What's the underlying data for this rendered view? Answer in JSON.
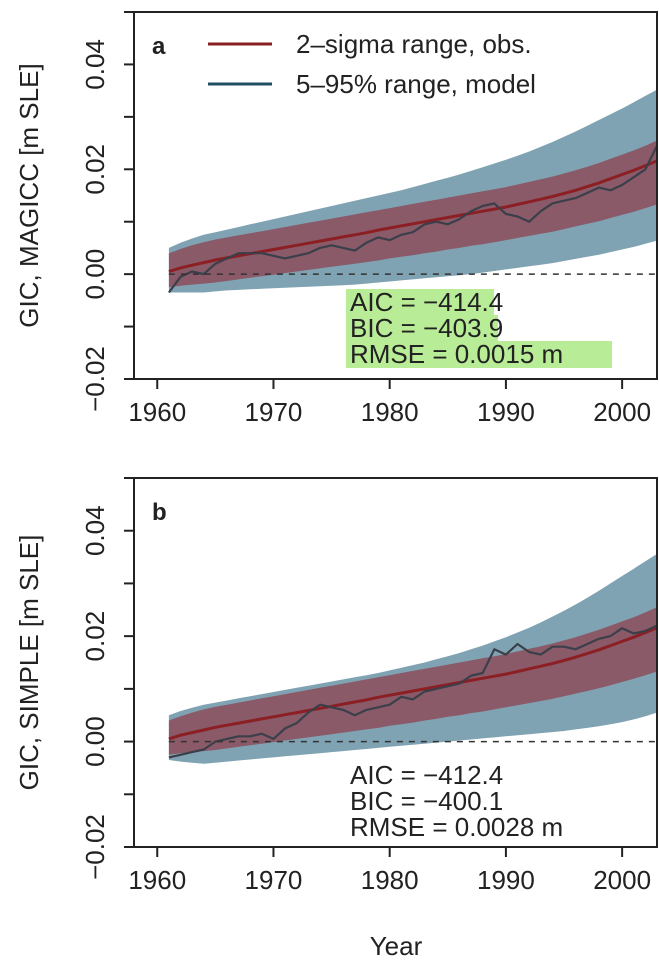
{
  "legend": {
    "obs_label": "2–sigma range, obs.",
    "model_label": "5–95% range, model"
  },
  "colors": {
    "obs_line": "#8b1f24",
    "obs_band": "#8c4d5a",
    "model_line": "#1f4f63",
    "model_band": "#7fa3b3",
    "highlight": "#b8ec96",
    "model_run": "#3a3f4a"
  },
  "shared_xlabel": "Year",
  "chart_data": [
    {
      "type": "line",
      "panel": "a",
      "ylabel": "GIC, MAGICC [m SLE]",
      "xlim": [
        1958,
        2003
      ],
      "ylim": [
        -0.02,
        0.05
      ],
      "xticks": [
        1960,
        1970,
        1980,
        1990,
        2000
      ],
      "xtick_labels": [
        "1960",
        "1970",
        "1980",
        "1990",
        "2000"
      ],
      "yticks": [
        -0.02,
        0.0,
        0.02,
        0.04
      ],
      "ytick_labels": [
        "−0.02",
        "0.00",
        "0.02",
        "0.04"
      ],
      "zero_line": "dashed",
      "stats": [
        "AIC = −414.4",
        "BIC = −403.9",
        "RMSE = 0.0015 m"
      ],
      "stats_highlighted": true,
      "x": [
        1961,
        1962,
        1963,
        1964,
        1965,
        1966,
        1967,
        1968,
        1969,
        1970,
        1971,
        1972,
        1973,
        1974,
        1975,
        1976,
        1977,
        1978,
        1979,
        1980,
        1981,
        1982,
        1983,
        1984,
        1985,
        1986,
        1987,
        1988,
        1989,
        1990,
        1991,
        1992,
        1993,
        1994,
        1995,
        1996,
        1997,
        1998,
        1999,
        2000,
        2001,
        2002,
        2003
      ],
      "series": [
        {
          "name": "2–sigma range, obs.",
          "center": [
            0.0005,
            0.0012,
            0.0017,
            0.0022,
            0.0027,
            0.0031,
            0.0035,
            0.0039,
            0.0043,
            0.0047,
            0.0051,
            0.0055,
            0.0059,
            0.0063,
            0.0067,
            0.0071,
            0.0075,
            0.0079,
            0.0084,
            0.0088,
            0.0092,
            0.0096,
            0.01,
            0.0104,
            0.0108,
            0.0112,
            0.0116,
            0.012,
            0.0124,
            0.0128,
            0.0133,
            0.0138,
            0.0143,
            0.0148,
            0.0154,
            0.016,
            0.0167,
            0.0174,
            0.0182,
            0.019,
            0.0198,
            0.0207,
            0.0216
          ],
          "lower": [
            -0.0025,
            -0.0022,
            -0.002,
            -0.0018,
            -0.0016,
            -0.0013,
            -0.001,
            -0.0007,
            -0.0004,
            -0.0001,
            0.0002,
            0.0005,
            0.0008,
            0.0011,
            0.0014,
            0.0017,
            0.002,
            0.0023,
            0.0026,
            0.003,
            0.0033,
            0.0036,
            0.004,
            0.0043,
            0.0047,
            0.005,
            0.0054,
            0.0057,
            0.0061,
            0.0065,
            0.0069,
            0.0073,
            0.0077,
            0.0081,
            0.0086,
            0.0091,
            0.0096,
            0.0101,
            0.0107,
            0.0113,
            0.0119,
            0.0126,
            0.0133
          ],
          "upper": [
            0.004,
            0.0048,
            0.0055,
            0.0061,
            0.0066,
            0.007,
            0.0074,
            0.0078,
            0.0082,
            0.0086,
            0.009,
            0.0094,
            0.0098,
            0.0102,
            0.0106,
            0.011,
            0.0114,
            0.0118,
            0.0122,
            0.0126,
            0.013,
            0.0134,
            0.0138,
            0.0142,
            0.0146,
            0.015,
            0.0154,
            0.0158,
            0.0162,
            0.0166,
            0.0171,
            0.0176,
            0.0181,
            0.0186,
            0.0192,
            0.0198,
            0.0205,
            0.0212,
            0.022,
            0.0228,
            0.0236,
            0.0245,
            0.0255
          ]
        },
        {
          "name": "5–95% range, model",
          "lower": [
            -0.0035,
            -0.0035,
            -0.0035,
            -0.0035,
            -0.0033,
            -0.0031,
            -0.003,
            -0.0029,
            -0.0028,
            -0.0027,
            -0.0026,
            -0.0025,
            -0.0024,
            -0.0023,
            -0.0022,
            -0.0021,
            -0.002,
            -0.0018,
            -0.0016,
            -0.0014,
            -0.0012,
            -0.001,
            -0.0008,
            -0.0006,
            -0.0004,
            -0.0002,
            0.0,
            0.0003,
            0.0006,
            0.0009,
            0.0012,
            0.0015,
            0.0018,
            0.0021,
            0.0025,
            0.0029,
            0.0033,
            0.0037,
            0.0042,
            0.0047,
            0.0052,
            0.0058,
            0.0064
          ],
          "upper": [
            0.005,
            0.006,
            0.0068,
            0.0075,
            0.008,
            0.0085,
            0.009,
            0.0095,
            0.01,
            0.0105,
            0.011,
            0.0115,
            0.012,
            0.0125,
            0.013,
            0.0135,
            0.014,
            0.0145,
            0.015,
            0.0155,
            0.016,
            0.0166,
            0.0172,
            0.0178,
            0.0184,
            0.019,
            0.0197,
            0.0204,
            0.0211,
            0.0218,
            0.0226,
            0.0234,
            0.0243,
            0.0252,
            0.0262,
            0.0272,
            0.0283,
            0.0294,
            0.0305,
            0.0316,
            0.0328,
            0.034,
            0.0352
          ],
          "run": [
            -0.0035,
            -0.0005,
            0.0005,
            0.0,
            0.002,
            0.003,
            0.004,
            0.004,
            0.004,
            0.0035,
            0.003,
            0.0035,
            0.004,
            0.005,
            0.0055,
            0.005,
            0.0045,
            0.006,
            0.007,
            0.0065,
            0.0075,
            0.008,
            0.0095,
            0.01,
            0.0095,
            0.0105,
            0.012,
            0.013,
            0.0135,
            0.0115,
            0.011,
            0.01,
            0.012,
            0.0135,
            0.014,
            0.0145,
            0.0155,
            0.0165,
            0.016,
            0.017,
            0.0185,
            0.02,
            0.0245
          ]
        }
      ]
    },
    {
      "type": "line",
      "panel": "b",
      "ylabel": "GIC, SIMPLE [m SLE]",
      "xlabel": "Year",
      "xlim": [
        1958,
        2003
      ],
      "ylim": [
        -0.02,
        0.05
      ],
      "xticks": [
        1960,
        1970,
        1980,
        1990,
        2000
      ],
      "xtick_labels": [
        "1960",
        "1970",
        "1980",
        "1990",
        "2000"
      ],
      "yticks": [
        -0.02,
        0.0,
        0.02,
        0.04
      ],
      "ytick_labels": [
        "−0.02",
        "0.00",
        "0.02",
        "0.04"
      ],
      "zero_line": "dashed",
      "stats": [
        "AIC = −412.4",
        "BIC = −400.1",
        "RMSE = 0.0028 m"
      ],
      "stats_highlighted": false,
      "x": [
        1961,
        1962,
        1963,
        1964,
        1965,
        1966,
        1967,
        1968,
        1969,
        1970,
        1971,
        1972,
        1973,
        1974,
        1975,
        1976,
        1977,
        1978,
        1979,
        1980,
        1981,
        1982,
        1983,
        1984,
        1985,
        1986,
        1987,
        1988,
        1989,
        1990,
        1991,
        1992,
        1993,
        1994,
        1995,
        1996,
        1997,
        1998,
        1999,
        2000,
        2001,
        2002,
        2003
      ],
      "series": [
        {
          "name": "2–sigma range, obs.",
          "center": [
            0.0005,
            0.0012,
            0.0017,
            0.0022,
            0.0027,
            0.0031,
            0.0035,
            0.0039,
            0.0043,
            0.0047,
            0.0051,
            0.0055,
            0.0059,
            0.0063,
            0.0067,
            0.0071,
            0.0075,
            0.0079,
            0.0084,
            0.0088,
            0.0092,
            0.0096,
            0.01,
            0.0104,
            0.0108,
            0.0112,
            0.0116,
            0.012,
            0.0124,
            0.0128,
            0.0133,
            0.0138,
            0.0143,
            0.0148,
            0.0154,
            0.016,
            0.0167,
            0.0174,
            0.0182,
            0.019,
            0.0198,
            0.0207,
            0.0216
          ],
          "lower": [
            -0.0025,
            -0.0022,
            -0.002,
            -0.0018,
            -0.0016,
            -0.0013,
            -0.001,
            -0.0007,
            -0.0004,
            -0.0001,
            0.0002,
            0.0005,
            0.0008,
            0.0011,
            0.0014,
            0.0017,
            0.002,
            0.0023,
            0.0026,
            0.003,
            0.0033,
            0.0036,
            0.004,
            0.0043,
            0.0047,
            0.005,
            0.0054,
            0.0057,
            0.0061,
            0.0065,
            0.0069,
            0.0073,
            0.0077,
            0.0081,
            0.0086,
            0.0091,
            0.0096,
            0.0101,
            0.0107,
            0.0113,
            0.0119,
            0.0126,
            0.0133
          ],
          "upper": [
            0.004,
            0.0048,
            0.0055,
            0.0061,
            0.0066,
            0.007,
            0.0074,
            0.0078,
            0.0082,
            0.0086,
            0.009,
            0.0094,
            0.0098,
            0.0102,
            0.0106,
            0.011,
            0.0114,
            0.0118,
            0.0122,
            0.0126,
            0.013,
            0.0134,
            0.0138,
            0.0142,
            0.0146,
            0.015,
            0.0154,
            0.0158,
            0.0162,
            0.0166,
            0.0171,
            0.0176,
            0.0181,
            0.0186,
            0.0192,
            0.0198,
            0.0205,
            0.0212,
            0.022,
            0.0228,
            0.0236,
            0.0245,
            0.0255
          ]
        },
        {
          "name": "5–95% range, model",
          "lower": [
            -0.0035,
            -0.0038,
            -0.004,
            -0.0042,
            -0.004,
            -0.0038,
            -0.0036,
            -0.0034,
            -0.0032,
            -0.003,
            -0.0028,
            -0.0026,
            -0.0024,
            -0.0022,
            -0.002,
            -0.0018,
            -0.0016,
            -0.0014,
            -0.0012,
            -0.001,
            -0.0008,
            -0.0006,
            -0.0004,
            -0.0002,
            0.0,
            0.0002,
            0.0004,
            0.0006,
            0.0008,
            0.001,
            0.0012,
            0.0014,
            0.0016,
            0.0018,
            0.002,
            0.0023,
            0.0026,
            0.0029,
            0.0033,
            0.0037,
            0.0042,
            0.0048,
            0.0055
          ],
          "upper": [
            0.005,
            0.0058,
            0.0064,
            0.007,
            0.0074,
            0.0078,
            0.0082,
            0.0086,
            0.009,
            0.0094,
            0.0098,
            0.0102,
            0.0106,
            0.011,
            0.0114,
            0.0118,
            0.0122,
            0.0126,
            0.013,
            0.0135,
            0.014,
            0.0145,
            0.015,
            0.0156,
            0.0162,
            0.0168,
            0.0175,
            0.0182,
            0.019,
            0.0198,
            0.0207,
            0.0216,
            0.0226,
            0.0237,
            0.0248,
            0.026,
            0.0273,
            0.0286,
            0.03,
            0.0314,
            0.0328,
            0.0342,
            0.0356
          ],
          "run": [
            -0.003,
            -0.0025,
            -0.002,
            -0.0015,
            0.0,
            0.0005,
            0.001,
            0.001,
            0.0015,
            0.0005,
            0.0025,
            0.0035,
            0.0055,
            0.007,
            0.0065,
            0.006,
            0.005,
            0.006,
            0.0065,
            0.007,
            0.0085,
            0.008,
            0.0095,
            0.01,
            0.0105,
            0.011,
            0.0125,
            0.013,
            0.0175,
            0.0165,
            0.0185,
            0.017,
            0.0165,
            0.018,
            0.018,
            0.0175,
            0.0185,
            0.0195,
            0.02,
            0.0215,
            0.0205,
            0.021,
            0.022
          ]
        }
      ]
    }
  ]
}
